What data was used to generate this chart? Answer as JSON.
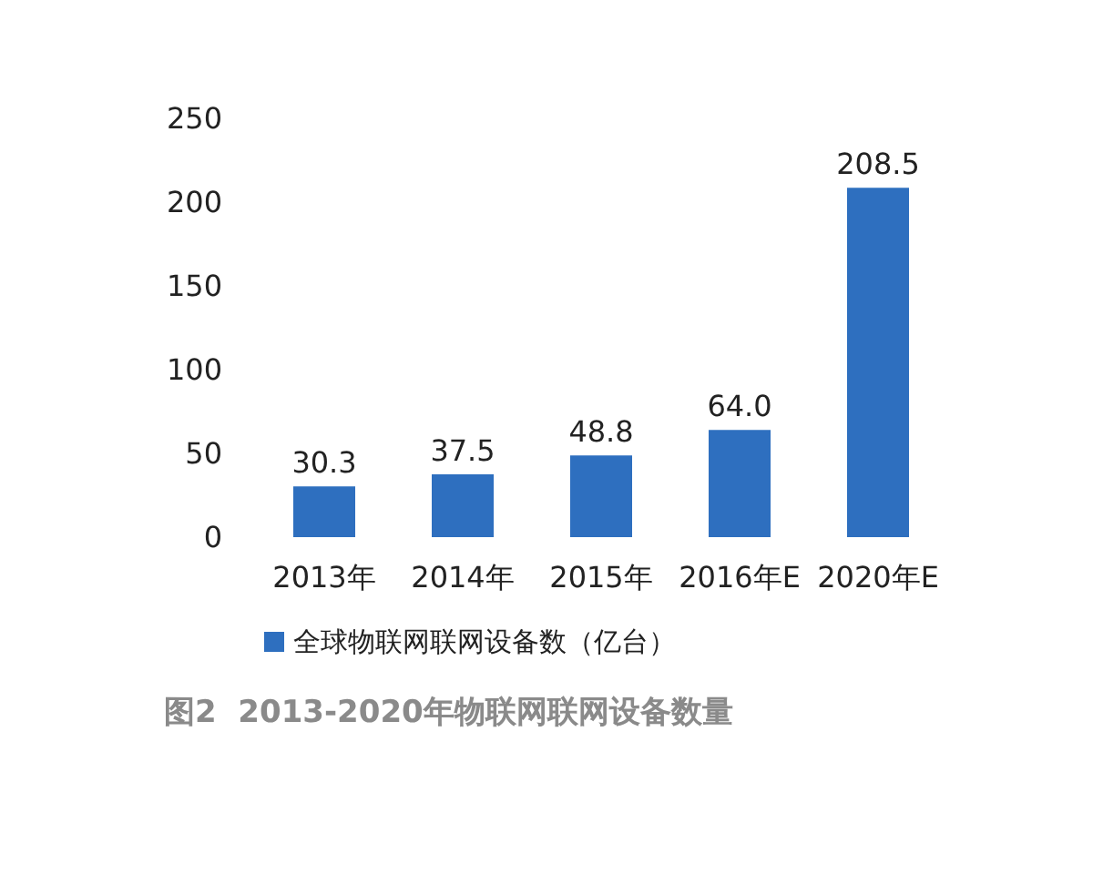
{
  "chart_data": {
    "type": "bar",
    "categories": [
      "2013年",
      "2014年",
      "2015年",
      "2016年E",
      "2020年E"
    ],
    "series": [
      {
        "name": "全球物联网联网设备数（亿台）",
        "color": "#2e6fbf",
        "values": [
          30.3,
          37.5,
          48.8,
          64.0,
          208.5
        ]
      }
    ],
    "value_labels": [
      "30.3",
      "37.5",
      "48.8",
      "64.0",
      "208.5"
    ],
    "ylim": [
      0,
      250
    ],
    "yticks": [
      0,
      50,
      100,
      150,
      200,
      250
    ],
    "grid": false,
    "legend": "bottom",
    "annotations": [
      "图2  2013-2020年物联网联网设备数量"
    ]
  }
}
